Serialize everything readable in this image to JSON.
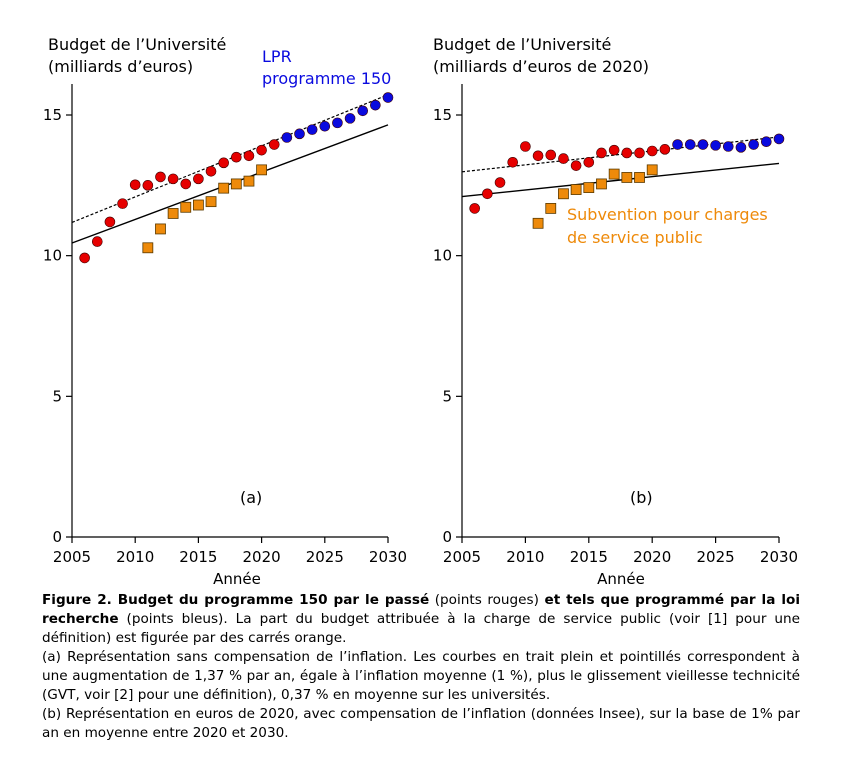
{
  "chart_data": [
    {
      "type": "scatter",
      "panel_label": "(a)",
      "title_lines": [
        "Budget de l’Université",
        "(milliards d’euros)"
      ],
      "xlabel": "Année",
      "ylabel": "",
      "xlim": [
        2005,
        2030
      ],
      "ylim": [
        0,
        16
      ],
      "xticks": [
        2005,
        2010,
        2015,
        2020,
        2025,
        2030
      ],
      "yticks": [
        0,
        5,
        10,
        15
      ],
      "grid": false,
      "annotation_lines": [
        "LPR",
        "programme 150"
      ],
      "annotation_color": "#0a0adf",
      "series": [
        {
          "name": "",
          "marker": "circle",
          "color": "#e60000",
          "x": [
            2006,
            2007,
            2008,
            2009,
            2010,
            2011,
            2012,
            2013,
            2014,
            2015,
            2016,
            2017,
            2018,
            2019,
            2020,
            2021
          ],
          "y": [
            9.92,
            10.5,
            11.2,
            11.85,
            12.52,
            12.5,
            12.8,
            12.73,
            12.55,
            12.73,
            13.0,
            13.3,
            13.5,
            13.55,
            13.75,
            13.95
          ]
        },
        {
          "name": "",
          "marker": "circle",
          "color": "#0a0adf",
          "x": [
            2022,
            2023,
            2024,
            2025,
            2026,
            2027,
            2028,
            2029,
            2030
          ],
          "y": [
            14.2,
            14.33,
            14.48,
            14.6,
            14.72,
            14.88,
            15.15,
            15.35,
            15.62
          ]
        },
        {
          "name": "",
          "marker": "square",
          "color": "#ee8a0a",
          "x": [
            2011,
            2012,
            2013,
            2014,
            2015,
            2016,
            2017,
            2018,
            2019,
            2020
          ],
          "y": [
            10.28,
            10.95,
            11.5,
            11.72,
            11.8,
            11.92,
            12.4,
            12.55,
            12.65,
            13.05
          ]
        }
      ],
      "lines": [
        {
          "style": "solid",
          "x": [
            2005,
            2030
          ],
          "y": [
            10.45,
            14.65
          ]
        },
        {
          "style": "dotted",
          "x": [
            2005,
            2030
          ],
          "y": [
            11.18,
            15.72
          ]
        }
      ]
    },
    {
      "type": "scatter",
      "panel_label": "(b)",
      "title_lines": [
        "Budget de l’Université",
        "(milliards d’euros de 2020)"
      ],
      "xlabel": "Année",
      "ylabel": "",
      "xlim": [
        2005,
        2030
      ],
      "ylim": [
        0,
        16
      ],
      "xticks": [
        2005,
        2010,
        2015,
        2020,
        2025,
        2030
      ],
      "yticks": [
        0,
        5,
        10,
        15
      ],
      "grid": false,
      "annotation_lines": [
        "Subvention pour charges",
        "de service public"
      ],
      "annotation_color": "#ee8a0a",
      "series": [
        {
          "name": "",
          "marker": "circle",
          "color": "#e60000",
          "x": [
            2006,
            2007,
            2008,
            2009,
            2010,
            2011,
            2012,
            2013,
            2014,
            2015,
            2016,
            2017,
            2018,
            2019,
            2020,
            2021
          ],
          "y": [
            11.68,
            12.2,
            12.6,
            13.32,
            13.88,
            13.55,
            13.58,
            13.45,
            13.2,
            13.32,
            13.65,
            13.75,
            13.65,
            13.65,
            13.72,
            13.78
          ]
        },
        {
          "name": "",
          "marker": "circle",
          "color": "#0a0adf",
          "x": [
            2022,
            2023,
            2024,
            2025,
            2026,
            2027,
            2028,
            2029,
            2030
          ],
          "y": [
            13.95,
            13.95,
            13.95,
            13.92,
            13.88,
            13.85,
            13.95,
            14.05,
            14.15
          ]
        },
        {
          "name": "",
          "marker": "square",
          "color": "#ee8a0a",
          "x": [
            2011,
            2012,
            2013,
            2014,
            2015,
            2016,
            2017,
            2018,
            2019,
            2020
          ],
          "y": [
            11.15,
            11.68,
            12.2,
            12.35,
            12.42,
            12.55,
            12.9,
            12.78,
            12.78,
            13.05
          ]
        }
      ],
      "lines": [
        {
          "style": "solid",
          "x": [
            2005,
            2030
          ],
          "y": [
            12.1,
            13.28
          ]
        },
        {
          "style": "dotted",
          "x": [
            2005,
            2030
          ],
          "y": [
            12.98,
            14.22
          ]
        }
      ]
    }
  ],
  "caption": {
    "p1_bold": "Figure 2. Budget du programme 150 par le passé",
    "p1_a": " (points rouges) ",
    "p1_bold2": "et tels que programmé par la loi recherche",
    "p1_b": " (points bleus). La part du budget attribuée à la charge de service public (voir [1] pour une définition) est figurée par des carrés orange.",
    "p2": "(a) Représentation sans compensation de l’inflation. Les courbes en trait plein et pointillés correspondent à une augmentation de 1,37 % par an, égale à l’inflation moyenne (1 %), plus le glissement vieillesse technicité (GVT, voir [2] pour une définition), 0,37 % en moyenne sur les universités.",
    "p3": "(b) Représentation en euros de 2020, avec compensation de l’inflation (données Insee), sur la base de 1% par an en moyenne entre 2020 et 2030."
  }
}
